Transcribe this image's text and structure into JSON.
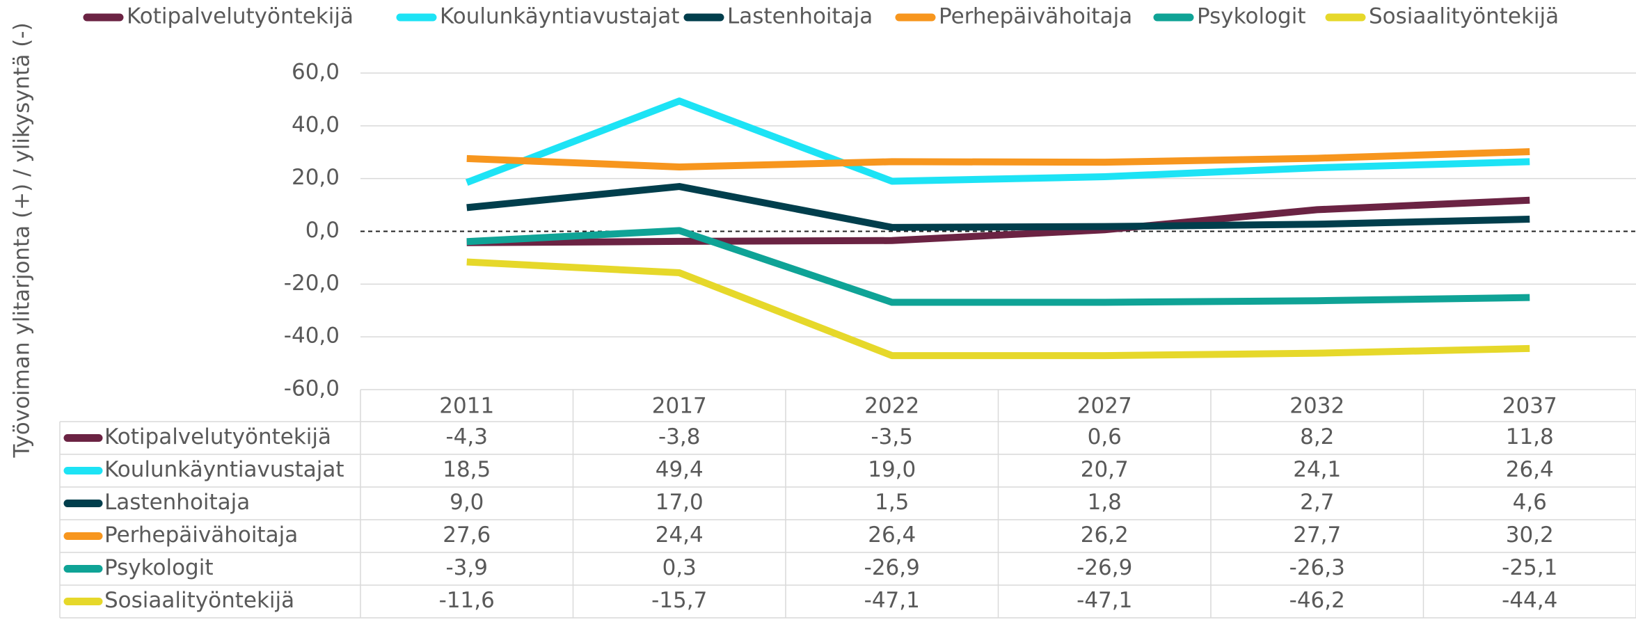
{
  "chart_data": {
    "type": "line",
    "y_axis_label": "Työvoiman ylitarjonta (+) / ylikysyntä (-)",
    "categories": [
      "2011",
      "2017",
      "2022",
      "2027",
      "2032",
      "2037"
    ],
    "ylim": [
      -60,
      60
    ],
    "yticks": [
      {
        "value": 60,
        "label": "60,0"
      },
      {
        "value": 40,
        "label": "40,0"
      },
      {
        "value": 20,
        "label": "20,0"
      },
      {
        "value": 0,
        "label": "0,0"
      },
      {
        "value": -20,
        "label": "-20,0"
      },
      {
        "value": -40,
        "label": "-40,0"
      },
      {
        "value": -60,
        "label": "-60,0"
      }
    ],
    "grid": true,
    "legend": "top",
    "series": [
      {
        "name": "Kotipalvelutyöntekijä",
        "color": "#6b2343",
        "values": [
          -4.3,
          -3.8,
          -3.5,
          0.6,
          8.2,
          11.8
        ],
        "value_labels": [
          "-4,3",
          "-3,8",
          "-3,5",
          "0,6",
          "8,2",
          "11,8"
        ]
      },
      {
        "name": "Koulunkäyntiavustajat",
        "color": "#1de3f5",
        "values": [
          18.5,
          49.4,
          19.0,
          20.7,
          24.1,
          26.4
        ],
        "value_labels": [
          "18,5",
          "49,4",
          "19,0",
          "20,7",
          "24,1",
          "26,4"
        ]
      },
      {
        "name": "Lastenhoitaja",
        "color": "#013e4c",
        "values": [
          9.0,
          17.0,
          1.5,
          1.8,
          2.7,
          4.6
        ],
        "value_labels": [
          "9,0",
          "17,0",
          "1,5",
          "1,8",
          "2,7",
          "4,6"
        ]
      },
      {
        "name": "Perhepäivähoitaja",
        "color": "#f7961e",
        "values": [
          27.6,
          24.4,
          26.4,
          26.2,
          27.7,
          30.2
        ],
        "value_labels": [
          "27,6",
          "24,4",
          "26,4",
          "26,2",
          "27,7",
          "30,2"
        ]
      },
      {
        "name": "Psykologit",
        "color": "#0fa396",
        "values": [
          -3.9,
          0.3,
          -26.9,
          -26.9,
          -26.3,
          -25.1
        ],
        "value_labels": [
          "-3,9",
          "0,3",
          "-26,9",
          "-26,9",
          "-26,3",
          "-25,1"
        ]
      },
      {
        "name": "Sosiaalityöntekijä",
        "color": "#e6d82a",
        "values": [
          -11.6,
          -15.7,
          -47.1,
          -47.1,
          -46.2,
          -44.4
        ],
        "value_labels": [
          "-11,6",
          "-15,7",
          "-47,1",
          "-47,1",
          "-46,2",
          "-44,4"
        ]
      }
    ]
  }
}
